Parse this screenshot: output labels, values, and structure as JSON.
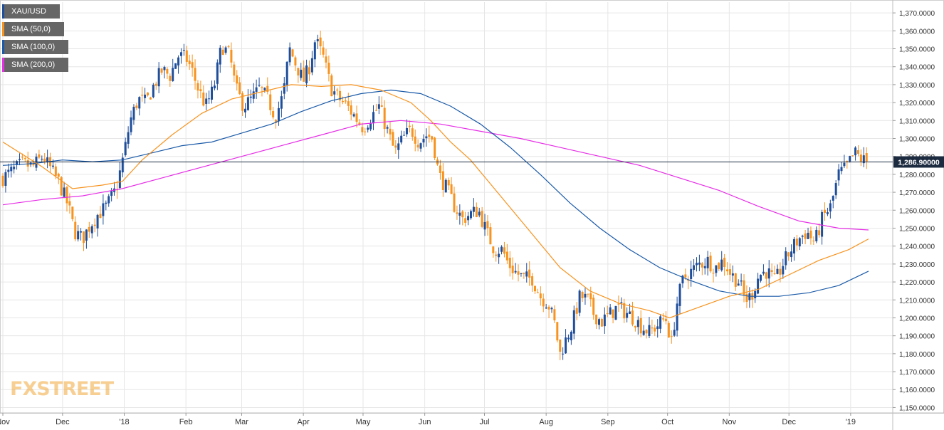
{
  "chart_data": {
    "type": "candlestick",
    "symbol": "XAU/USD",
    "legend": [
      {
        "label": "XAU/USD",
        "color": "#1f4e9b"
      },
      {
        "label": "SMA (50,0)",
        "color": "#f7931e"
      },
      {
        "label": "SMA (100,0)",
        "color": "#1a5aa8"
      },
      {
        "label": "SMA (200,0)",
        "color": "#e62ee6"
      }
    ],
    "ylim": [
      1147,
      1376
    ],
    "y_ticks": [
      1150,
      1160,
      1170,
      1180,
      1190,
      1200,
      1210,
      1220,
      1230,
      1240,
      1250,
      1260,
      1270,
      1280,
      1290,
      1300,
      1310,
      1320,
      1330,
      1340,
      1350,
      1360,
      1370
    ],
    "y_tick_labels": [
      "1,150.0000",
      "1,160.0000",
      "1,170.0000",
      "1,180.0000",
      "1,190.0000",
      "1,200.0000",
      "1,210.0000",
      "1,220.0000",
      "1,230.0000",
      "1,240.0000",
      "1,250.0000",
      "1,260.0000",
      "1,270.0000",
      "1,280.0000",
      "1,290.0000",
      "1,300.0000",
      "1,310.0000",
      "1,320.0000",
      "1,330.0000",
      "1,340.0000",
      "1,350.0000",
      "1,360.0000",
      "1,370.0000"
    ],
    "x_labels": [
      {
        "label": "Nov",
        "day": 0
      },
      {
        "label": "Dec",
        "day": 30
      },
      {
        "label": "'18",
        "day": 61
      },
      {
        "label": "Feb",
        "day": 92
      },
      {
        "label": "Mar",
        "day": 120
      },
      {
        "label": "Apr",
        "day": 151
      },
      {
        "label": "May",
        "day": 181
      },
      {
        "label": "Jun",
        "day": 212
      },
      {
        "label": "Jul",
        "day": 242
      },
      {
        "label": "Aug",
        "day": 273
      },
      {
        "label": "Sep",
        "day": 304
      },
      {
        "label": "Oct",
        "day": 334
      },
      {
        "label": "Nov",
        "day": 365
      },
      {
        "label": "Dec",
        "day": 395
      },
      {
        "label": "'19",
        "day": 426
      }
    ],
    "x_range_days": [
      0,
      440
    ],
    "price_anchors": [
      [
        0,
        1278
      ],
      [
        5,
        1282
      ],
      [
        10,
        1286
      ],
      [
        15,
        1284
      ],
      [
        20,
        1290
      ],
      [
        24,
        1283
      ],
      [
        28,
        1276
      ],
      [
        33,
        1262
      ],
      [
        36,
        1248
      ],
      [
        40,
        1244
      ],
      [
        44,
        1252
      ],
      [
        48,
        1258
      ],
      [
        52,
        1262
      ],
      [
        57,
        1272
      ],
      [
        61,
        1292
      ],
      [
        64,
        1310
      ],
      [
        68,
        1322
      ],
      [
        72,
        1320
      ],
      [
        76,
        1330
      ],
      [
        80,
        1338
      ],
      [
        84,
        1335
      ],
      [
        88,
        1346
      ],
      [
        92,
        1345
      ],
      [
        95,
        1338
      ],
      [
        98,
        1328
      ],
      [
        102,
        1318
      ],
      [
        106,
        1328
      ],
      [
        110,
        1352
      ],
      [
        114,
        1346
      ],
      [
        117,
        1328
      ],
      [
        121,
        1318
      ],
      [
        125,
        1322
      ],
      [
        129,
        1328
      ],
      [
        133,
        1322
      ],
      [
        137,
        1312
      ],
      [
        141,
        1325
      ],
      [
        144,
        1350
      ],
      [
        147,
        1342
      ],
      [
        151,
        1332
      ],
      [
        154,
        1340
      ],
      [
        157,
        1355
      ],
      [
        161,
        1345
      ],
      [
        165,
        1328
      ],
      [
        169,
        1322
      ],
      [
        173,
        1318
      ],
      [
        177,
        1312
      ],
      [
        181,
        1306
      ],
      [
        185,
        1312
      ],
      [
        189,
        1318
      ],
      [
        193,
        1305
      ],
      [
        197,
        1292
      ],
      [
        201,
        1300
      ],
      [
        205,
        1305
      ],
      [
        209,
        1298
      ],
      [
        213,
        1302
      ],
      [
        216,
        1300
      ],
      [
        219,
        1280
      ],
      [
        223,
        1272
      ],
      [
        227,
        1262
      ],
      [
        231,
        1255
      ],
      [
        235,
        1258
      ],
      [
        239,
        1260
      ],
      [
        243,
        1248
      ],
      [
        247,
        1238
      ],
      [
        251,
        1238
      ],
      [
        254,
        1230
      ],
      [
        258,
        1225
      ],
      [
        262,
        1222
      ],
      [
        266,
        1222
      ],
      [
        270,
        1212
      ],
      [
        274,
        1208
      ],
      [
        277,
        1198
      ],
      [
        280,
        1180
      ],
      [
        283,
        1188
      ],
      [
        286,
        1196
      ],
      [
        290,
        1212
      ],
      [
        294,
        1210
      ],
      [
        297,
        1202
      ],
      [
        301,
        1198
      ],
      [
        305,
        1202
      ],
      [
        309,
        1206
      ],
      [
        313,
        1203
      ],
      [
        317,
        1200
      ],
      [
        321,
        1195
      ],
      [
        325,
        1192
      ],
      [
        329,
        1196
      ],
      [
        333,
        1200
      ],
      [
        336,
        1186
      ],
      [
        339,
        1210
      ],
      [
        342,
        1222
      ],
      [
        346,
        1226
      ],
      [
        350,
        1230
      ],
      [
        354,
        1232
      ],
      [
        358,
        1228
      ],
      [
        362,
        1232
      ],
      [
        366,
        1224
      ],
      [
        370,
        1220
      ],
      [
        373,
        1210
      ],
      [
        376,
        1212
      ],
      [
        380,
        1224
      ],
      [
        384,
        1226
      ],
      [
        388,
        1220
      ],
      [
        392,
        1230
      ],
      [
        396,
        1238
      ],
      [
        400,
        1244
      ],
      [
        404,
        1248
      ],
      [
        408,
        1242
      ],
      [
        412,
        1256
      ],
      [
        416,
        1262
      ],
      [
        420,
        1280
      ],
      [
        424,
        1284
      ],
      [
        428,
        1292
      ],
      [
        432,
        1288
      ],
      [
        435,
        1286.9
      ]
    ],
    "sma50": [
      [
        0,
        1298
      ],
      [
        20,
        1284
      ],
      [
        35,
        1272
      ],
      [
        50,
        1274
      ],
      [
        60,
        1276
      ],
      [
        70,
        1288
      ],
      [
        85,
        1302
      ],
      [
        100,
        1314
      ],
      [
        115,
        1322
      ],
      [
        130,
        1326
      ],
      [
        145,
        1330
      ],
      [
        160,
        1329
      ],
      [
        175,
        1330
      ],
      [
        190,
        1327
      ],
      [
        205,
        1320
      ],
      [
        215,
        1310
      ],
      [
        225,
        1298
      ],
      [
        235,
        1288
      ],
      [
        250,
        1268
      ],
      [
        265,
        1248
      ],
      [
        280,
        1228
      ],
      [
        295,
        1215
      ],
      [
        310,
        1208
      ],
      [
        325,
        1204
      ],
      [
        335,
        1200
      ],
      [
        350,
        1206
      ],
      [
        365,
        1212
      ],
      [
        380,
        1216
      ],
      [
        395,
        1224
      ],
      [
        410,
        1232
      ],
      [
        425,
        1238
      ],
      [
        435,
        1244
      ]
    ],
    "sma100": [
      [
        0,
        1285
      ],
      [
        15,
        1286
      ],
      [
        30,
        1288
      ],
      [
        45,
        1287
      ],
      [
        60,
        1288
      ],
      [
        75,
        1292
      ],
      [
        90,
        1296
      ],
      [
        105,
        1298
      ],
      [
        120,
        1303
      ],
      [
        135,
        1308
      ],
      [
        150,
        1315
      ],
      [
        165,
        1321
      ],
      [
        180,
        1325
      ],
      [
        195,
        1327
      ],
      [
        210,
        1325
      ],
      [
        225,
        1318
      ],
      [
        240,
        1308
      ],
      [
        255,
        1295
      ],
      [
        270,
        1280
      ],
      [
        285,
        1264
      ],
      [
        300,
        1250
      ],
      [
        315,
        1238
      ],
      [
        330,
        1228
      ],
      [
        345,
        1221
      ],
      [
        360,
        1215
      ],
      [
        375,
        1212
      ],
      [
        390,
        1212
      ],
      [
        405,
        1214
      ],
      [
        420,
        1218
      ],
      [
        435,
        1226
      ]
    ],
    "sma200": [
      [
        0,
        1263
      ],
      [
        20,
        1266
      ],
      [
        40,
        1268
      ],
      [
        60,
        1272
      ],
      [
        80,
        1278
      ],
      [
        100,
        1284
      ],
      [
        120,
        1290
      ],
      [
        140,
        1296
      ],
      [
        160,
        1302
      ],
      [
        180,
        1308
      ],
      [
        200,
        1310
      ],
      [
        220,
        1308
      ],
      [
        240,
        1304
      ],
      [
        260,
        1300
      ],
      [
        280,
        1295
      ],
      [
        300,
        1290
      ],
      [
        320,
        1285
      ],
      [
        340,
        1278
      ],
      [
        360,
        1271
      ],
      [
        380,
        1262
      ],
      [
        400,
        1254
      ],
      [
        420,
        1250
      ],
      [
        435,
        1249
      ]
    ],
    "current_price": 1286.9,
    "current_price_label": "1,286.90000"
  },
  "brand": {
    "part1": "FX",
    "part2": "STREET"
  }
}
